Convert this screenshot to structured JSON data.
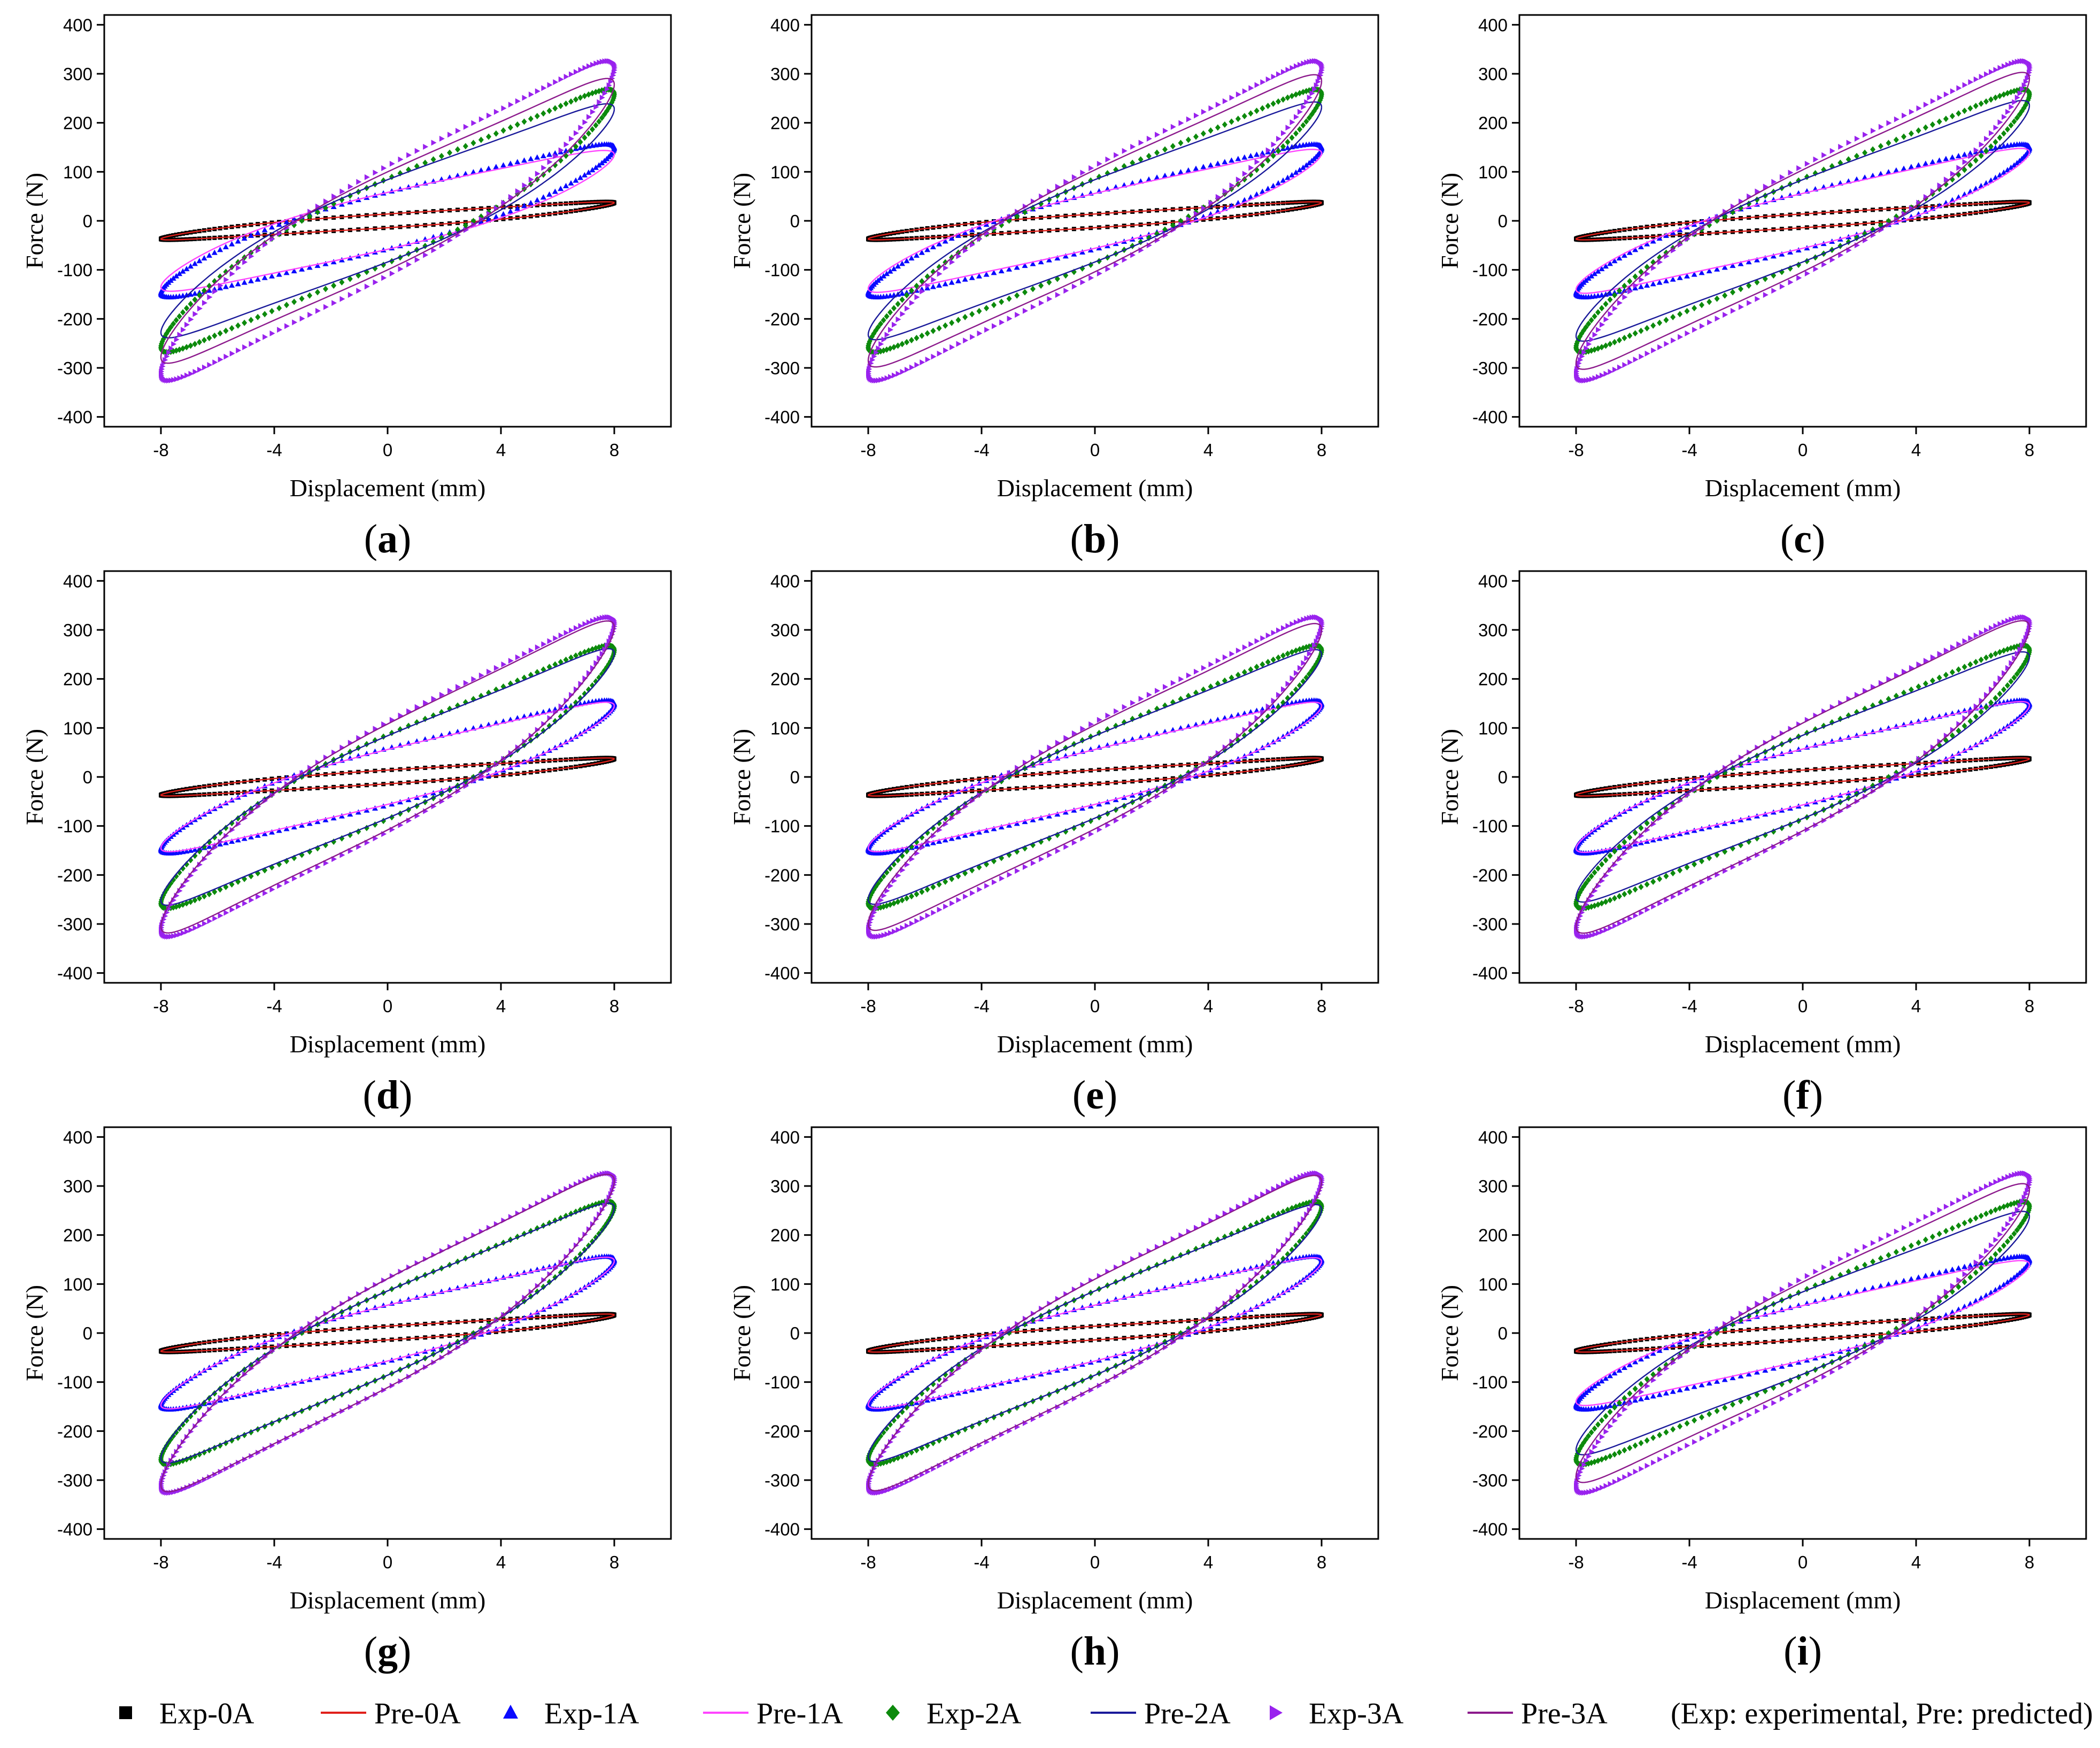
{
  "colors": {
    "Exp-0A": "#000000",
    "Pre-0A": "#e0201b",
    "Exp-1A": "#0a0aff",
    "Pre-1A": "#ff44ff",
    "Exp-2A": "#0c8a0c",
    "Pre-2A": "#1a1a9a",
    "Exp-3A": "#9922ee",
    "Pre-3A": "#8c1a8c"
  },
  "legend": {
    "items": [
      {
        "key": "Exp-0A",
        "label": "Exp-0A",
        "marker": "square"
      },
      {
        "key": "Pre-0A",
        "label": "Pre-0A",
        "marker": "line"
      },
      {
        "key": "Exp-1A",
        "label": "Exp-1A",
        "marker": "triangle-up"
      },
      {
        "key": "Pre-1A",
        "label": "Pre-1A",
        "marker": "line"
      },
      {
        "key": "Exp-2A",
        "label": "Exp-2A",
        "marker": "diamond"
      },
      {
        "key": "Pre-2A",
        "label": "Pre-2A",
        "marker": "line"
      },
      {
        "key": "Exp-3A",
        "label": "Exp-3A",
        "marker": "triangle-right"
      },
      {
        "key": "Pre-3A",
        "label": "Pre-3A",
        "marker": "line"
      }
    ],
    "note": "(Exp: experimental, Pre: predicted)"
  },
  "chart_data": [
    {
      "panel": "a",
      "caption": [
        "(",
        "a",
        ")"
      ],
      "type": "line",
      "xlabel": "Displacement (mm)",
      "ylabel": "Force (N)",
      "xlim": [
        -10,
        10
      ],
      "ylim": [
        -420,
        420
      ],
      "xticks": [
        -8,
        -4,
        0,
        4,
        8
      ],
      "yticks": [
        -400,
        -300,
        -200,
        -100,
        0,
        100,
        200,
        300,
        400
      ],
      "series": [
        {
          "name": "Exp-0A",
          "kind": "exp",
          "amplitude": 8,
          "peak_force": 37,
          "width": 14
        },
        {
          "name": "Pre-0A",
          "kind": "pre",
          "amplitude": 8,
          "peak_force": 37,
          "width": 14
        },
        {
          "name": "Exp-1A",
          "kind": "exp",
          "amplitude": 8,
          "peak_force": 148,
          "width": 58
        },
        {
          "name": "Pre-1A",
          "kind": "pre",
          "amplitude": 8,
          "peak_force": 135,
          "width": 58
        },
        {
          "name": "Exp-2A",
          "kind": "exp",
          "amplitude": 8,
          "peak_force": 258,
          "width": 86
        },
        {
          "name": "Pre-2A",
          "kind": "pre",
          "amplitude": 8,
          "peak_force": 228,
          "width": 84
        },
        {
          "name": "Exp-3A",
          "kind": "exp",
          "amplitude": 8,
          "peak_force": 312,
          "width": 112
        },
        {
          "name": "Pre-3A",
          "kind": "pre",
          "amplitude": 8,
          "peak_force": 278,
          "width": 100
        }
      ]
    },
    {
      "panel": "b",
      "caption": [
        "(",
        "b",
        ")"
      ],
      "type": "line",
      "xlabel": "Displacement (mm)",
      "ylabel": "Force (N)",
      "xlim": [
        -10,
        10
      ],
      "ylim": [
        -420,
        420
      ],
      "xticks": [
        -8,
        -4,
        0,
        4,
        8
      ],
      "yticks": [
        -400,
        -300,
        -200,
        -100,
        0,
        100,
        200,
        300,
        400
      ],
      "series": [
        {
          "name": "Exp-0A",
          "kind": "exp",
          "amplitude": 8,
          "peak_force": 37,
          "width": 14
        },
        {
          "name": "Pre-0A",
          "kind": "pre",
          "amplitude": 8,
          "peak_force": 37,
          "width": 14
        },
        {
          "name": "Exp-1A",
          "kind": "exp",
          "amplitude": 8,
          "peak_force": 148,
          "width": 58
        },
        {
          "name": "Pre-1A",
          "kind": "pre",
          "amplitude": 8,
          "peak_force": 138,
          "width": 56
        },
        {
          "name": "Exp-2A",
          "kind": "exp",
          "amplitude": 8,
          "peak_force": 258,
          "width": 86
        },
        {
          "name": "Pre-2A",
          "kind": "pre",
          "amplitude": 8,
          "peak_force": 232,
          "width": 84
        },
        {
          "name": "Exp-3A",
          "kind": "exp",
          "amplitude": 8,
          "peak_force": 312,
          "width": 112
        },
        {
          "name": "Pre-3A",
          "kind": "pre",
          "amplitude": 8,
          "peak_force": 285,
          "width": 104
        }
      ]
    },
    {
      "panel": "c",
      "caption": [
        "(",
        "c",
        ")"
      ],
      "type": "line",
      "xlabel": "Displacement (mm)",
      "ylabel": "Force (N)",
      "xlim": [
        -10,
        10
      ],
      "ylim": [
        -420,
        420
      ],
      "xticks": [
        -8,
        -4,
        0,
        4,
        8
      ],
      "yticks": [
        -400,
        -300,
        -200,
        -100,
        0,
        100,
        200,
        300,
        400
      ],
      "series": [
        {
          "name": "Exp-0A",
          "kind": "exp",
          "amplitude": 8,
          "peak_force": 37,
          "width": 14
        },
        {
          "name": "Pre-0A",
          "kind": "pre",
          "amplitude": 8,
          "peak_force": 37,
          "width": 14
        },
        {
          "name": "Exp-1A",
          "kind": "exp",
          "amplitude": 8,
          "peak_force": 148,
          "width": 58
        },
        {
          "name": "Pre-1A",
          "kind": "pre",
          "amplitude": 8,
          "peak_force": 140,
          "width": 56
        },
        {
          "name": "Exp-2A",
          "kind": "exp",
          "amplitude": 8,
          "peak_force": 258,
          "width": 86
        },
        {
          "name": "Pre-2A",
          "kind": "pre",
          "amplitude": 8,
          "peak_force": 235,
          "width": 84
        },
        {
          "name": "Exp-3A",
          "kind": "exp",
          "amplitude": 8,
          "peak_force": 312,
          "width": 112
        },
        {
          "name": "Pre-3A",
          "kind": "pre",
          "amplitude": 8,
          "peak_force": 290,
          "width": 104
        }
      ]
    },
    {
      "panel": "d",
      "caption": [
        "(",
        "d",
        ")"
      ],
      "type": "line",
      "xlabel": "Displacement (mm)",
      "ylabel": "Force (N)",
      "xlim": [
        -10,
        10
      ],
      "ylim": [
        -420,
        420
      ],
      "xticks": [
        -8,
        -4,
        0,
        4,
        8
      ],
      "yticks": [
        -400,
        -300,
        -200,
        -100,
        0,
        100,
        200,
        300,
        400
      ],
      "series": [
        {
          "name": "Exp-0A",
          "kind": "exp",
          "amplitude": 8,
          "peak_force": 37,
          "width": 14
        },
        {
          "name": "Pre-0A",
          "kind": "pre",
          "amplitude": 8,
          "peak_force": 37,
          "width": 14
        },
        {
          "name": "Exp-1A",
          "kind": "exp",
          "amplitude": 8,
          "peak_force": 148,
          "width": 58
        },
        {
          "name": "Pre-1A",
          "kind": "pre",
          "amplitude": 8,
          "peak_force": 145,
          "width": 56
        },
        {
          "name": "Exp-2A",
          "kind": "exp",
          "amplitude": 8,
          "peak_force": 258,
          "width": 86
        },
        {
          "name": "Pre-2A",
          "kind": "pre",
          "amplitude": 8,
          "peak_force": 252,
          "width": 84
        },
        {
          "name": "Exp-3A",
          "kind": "exp",
          "amplitude": 8,
          "peak_force": 312,
          "width": 112
        },
        {
          "name": "Pre-3A",
          "kind": "pre",
          "amplitude": 8,
          "peak_force": 305,
          "width": 108
        }
      ]
    },
    {
      "panel": "e",
      "caption": [
        "(",
        "e",
        ")"
      ],
      "type": "line",
      "xlabel": "Displacement (mm)",
      "ylabel": "Force (N)",
      "xlim": [
        -10,
        10
      ],
      "ylim": [
        -420,
        420
      ],
      "xticks": [
        -8,
        -4,
        0,
        4,
        8
      ],
      "yticks": [
        -400,
        -300,
        -200,
        -100,
        0,
        100,
        200,
        300,
        400
      ],
      "series": [
        {
          "name": "Exp-0A",
          "kind": "exp",
          "amplitude": 8,
          "peak_force": 37,
          "width": 14
        },
        {
          "name": "Pre-0A",
          "kind": "pre",
          "amplitude": 8,
          "peak_force": 37,
          "width": 14
        },
        {
          "name": "Exp-1A",
          "kind": "exp",
          "amplitude": 8,
          "peak_force": 148,
          "width": 58
        },
        {
          "name": "Pre-1A",
          "kind": "pre",
          "amplitude": 8,
          "peak_force": 145,
          "width": 56
        },
        {
          "name": "Exp-2A",
          "kind": "exp",
          "amplitude": 8,
          "peak_force": 258,
          "width": 86
        },
        {
          "name": "Pre-2A",
          "kind": "pre",
          "amplitude": 8,
          "peak_force": 250,
          "width": 84
        },
        {
          "name": "Exp-3A",
          "kind": "exp",
          "amplitude": 8,
          "peak_force": 312,
          "width": 112
        },
        {
          "name": "Pre-3A",
          "kind": "pre",
          "amplitude": 8,
          "peak_force": 300,
          "width": 106
        }
      ]
    },
    {
      "panel": "f",
      "caption": [
        "(",
        "f",
        ")"
      ],
      "type": "line",
      "xlabel": "Displacement (mm)",
      "ylabel": "Force (N)",
      "xlim": [
        -10,
        10
      ],
      "ylim": [
        -420,
        420
      ],
      "xticks": [
        -8,
        -4,
        0,
        4,
        8
      ],
      "yticks": [
        -400,
        -300,
        -200,
        -100,
        0,
        100,
        200,
        300,
        400
      ],
      "series": [
        {
          "name": "Exp-0A",
          "kind": "exp",
          "amplitude": 8,
          "peak_force": 37,
          "width": 14
        },
        {
          "name": "Pre-0A",
          "kind": "pre",
          "amplitude": 8,
          "peak_force": 37,
          "width": 14
        },
        {
          "name": "Exp-1A",
          "kind": "exp",
          "amplitude": 8,
          "peak_force": 148,
          "width": 58
        },
        {
          "name": "Pre-1A",
          "kind": "pre",
          "amplitude": 8,
          "peak_force": 146,
          "width": 57
        },
        {
          "name": "Exp-2A",
          "kind": "exp",
          "amplitude": 8,
          "peak_force": 258,
          "width": 86
        },
        {
          "name": "Pre-2A",
          "kind": "pre",
          "amplitude": 8,
          "peak_force": 245,
          "width": 85
        },
        {
          "name": "Exp-3A",
          "kind": "exp",
          "amplitude": 8,
          "peak_force": 312,
          "width": 112
        },
        {
          "name": "Pre-3A",
          "kind": "pre",
          "amplitude": 8,
          "peak_force": 305,
          "width": 110
        }
      ]
    },
    {
      "panel": "g",
      "caption": [
        "(",
        "g",
        ")"
      ],
      "type": "line",
      "xlabel": "Displacement (mm)",
      "ylabel": "Force (N)",
      "xlim": [
        -10,
        10
      ],
      "ylim": [
        -420,
        420
      ],
      "xticks": [
        -8,
        -4,
        0,
        4,
        8
      ],
      "yticks": [
        -400,
        -300,
        -200,
        -100,
        0,
        100,
        200,
        300,
        400
      ],
      "series": [
        {
          "name": "Exp-0A",
          "kind": "exp",
          "amplitude": 8,
          "peak_force": 37,
          "width": 14
        },
        {
          "name": "Pre-0A",
          "kind": "pre",
          "amplitude": 8,
          "peak_force": 37,
          "width": 14
        },
        {
          "name": "Exp-1A",
          "kind": "exp",
          "amplitude": 8,
          "peak_force": 148,
          "width": 58
        },
        {
          "name": "Pre-1A",
          "kind": "pre",
          "amplitude": 8,
          "peak_force": 147,
          "width": 57
        },
        {
          "name": "Exp-2A",
          "kind": "exp",
          "amplitude": 8,
          "peak_force": 258,
          "width": 86
        },
        {
          "name": "Pre-2A",
          "kind": "pre",
          "amplitude": 8,
          "peak_force": 255,
          "width": 86
        },
        {
          "name": "Exp-3A",
          "kind": "exp",
          "amplitude": 8,
          "peak_force": 312,
          "width": 112
        },
        {
          "name": "Pre-3A",
          "kind": "pre",
          "amplitude": 8,
          "peak_force": 310,
          "width": 111
        }
      ]
    },
    {
      "panel": "h",
      "caption": [
        "(",
        "h",
        ")"
      ],
      "type": "line",
      "xlabel": "Displacement (mm)",
      "ylabel": "Force (N)",
      "xlim": [
        -10,
        10
      ],
      "ylim": [
        -420,
        420
      ],
      "xticks": [
        -8,
        -4,
        0,
        4,
        8
      ],
      "yticks": [
        -400,
        -300,
        -200,
        -100,
        0,
        100,
        200,
        300,
        400
      ],
      "series": [
        {
          "name": "Exp-0A",
          "kind": "exp",
          "amplitude": 8,
          "peak_force": 37,
          "width": 14
        },
        {
          "name": "Pre-0A",
          "kind": "pre",
          "amplitude": 8,
          "peak_force": 37,
          "width": 14
        },
        {
          "name": "Exp-1A",
          "kind": "exp",
          "amplitude": 8,
          "peak_force": 148,
          "width": 58
        },
        {
          "name": "Pre-1A",
          "kind": "pre",
          "amplitude": 8,
          "peak_force": 146,
          "width": 57
        },
        {
          "name": "Exp-2A",
          "kind": "exp",
          "amplitude": 8,
          "peak_force": 258,
          "width": 86
        },
        {
          "name": "Pre-2A",
          "kind": "pre",
          "amplitude": 8,
          "peak_force": 252,
          "width": 86
        },
        {
          "name": "Exp-3A",
          "kind": "exp",
          "amplitude": 8,
          "peak_force": 312,
          "width": 112
        },
        {
          "name": "Pre-3A",
          "kind": "pre",
          "amplitude": 8,
          "peak_force": 308,
          "width": 110
        }
      ]
    },
    {
      "panel": "i",
      "caption": [
        "(",
        "i",
        ")"
      ],
      "type": "line",
      "xlabel": "Displacement (mm)",
      "ylabel": "Force (N)",
      "xlim": [
        -10,
        10
      ],
      "ylim": [
        -420,
        420
      ],
      "xticks": [
        -8,
        -4,
        0,
        4,
        8
      ],
      "yticks": [
        -400,
        -300,
        -200,
        -100,
        0,
        100,
        200,
        300,
        400
      ],
      "series": [
        {
          "name": "Exp-0A",
          "kind": "exp",
          "amplitude": 8,
          "peak_force": 37,
          "width": 14
        },
        {
          "name": "Pre-0A",
          "kind": "pre",
          "amplitude": 8,
          "peak_force": 37,
          "width": 14
        },
        {
          "name": "Exp-1A",
          "kind": "exp",
          "amplitude": 8,
          "peak_force": 148,
          "width": 58
        },
        {
          "name": "Pre-1A",
          "kind": "pre",
          "amplitude": 8,
          "peak_force": 140,
          "width": 56
        },
        {
          "name": "Exp-2A",
          "kind": "exp",
          "amplitude": 8,
          "peak_force": 258,
          "width": 86
        },
        {
          "name": "Pre-2A",
          "kind": "pre",
          "amplitude": 8,
          "peak_force": 238,
          "width": 84
        },
        {
          "name": "Exp-3A",
          "kind": "exp",
          "amplitude": 8,
          "peak_force": 312,
          "width": 112
        },
        {
          "name": "Pre-3A",
          "kind": "pre",
          "amplitude": 8,
          "peak_force": 292,
          "width": 104
        }
      ]
    }
  ]
}
